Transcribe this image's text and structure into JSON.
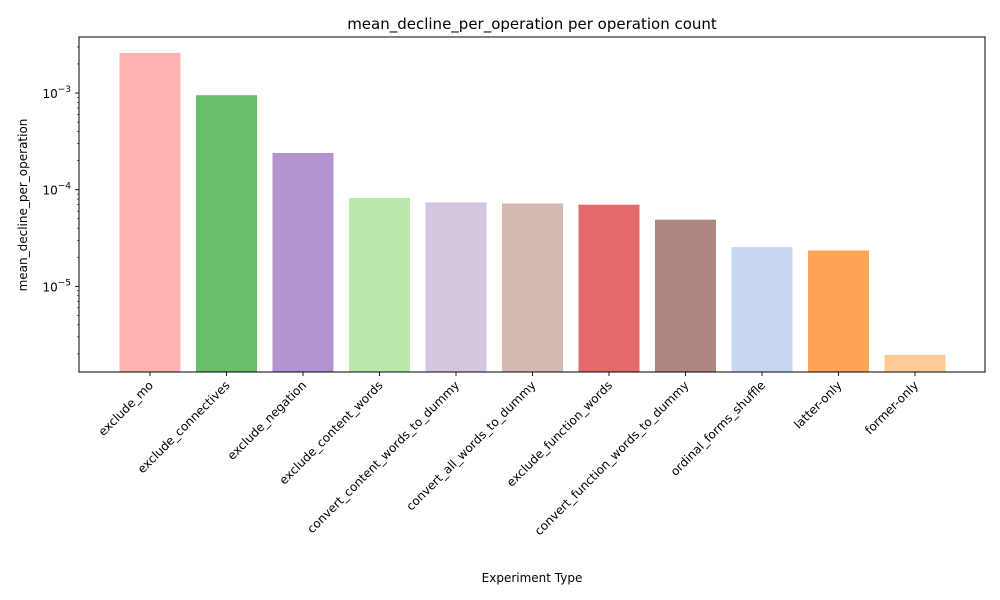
{
  "chart_data": {
    "type": "bar",
    "title": "mean_decline_per_operation per operation count",
    "xlabel": "Experiment Type",
    "ylabel": "mean_decline_per_operation",
    "yscale": "log",
    "ylim": [
      1.3e-06,
      0.0038
    ],
    "yticks": [
      {
        "value": 1e-05,
        "base": "10",
        "exp": "−5"
      },
      {
        "value": 0.0001,
        "base": "10",
        "exp": "−4"
      },
      {
        "value": 0.001,
        "base": "10",
        "exp": "−3"
      }
    ],
    "grid": false,
    "categories": [
      "exclude_mo",
      "exclude_connectives",
      "exclude_negation",
      "exclude_content_words",
      "convert_content_words_to_dummy",
      "convert_all_words_to_dummy",
      "exclude_function_words",
      "convert_function_words_to_dummy",
      "ordinal_forms_shuffle",
      "latter-only",
      "former-only"
    ],
    "values": [
      0.0026,
      0.00095,
      0.00024,
      8.2e-05,
      7.4e-05,
      7.2e-05,
      7e-05,
      4.9e-05,
      2.55e-05,
      2.35e-05,
      1.95e-06
    ],
    "colors": [
      "#ffb3b3",
      "#6abd6a",
      "#b394d1",
      "#b8e8aa",
      "#d5c6e0",
      "#d4b9b3",
      "#e26a6a",
      "#ad8780",
      "#c7d7ef",
      "#ffa555",
      "#ffcc99"
    ]
  }
}
